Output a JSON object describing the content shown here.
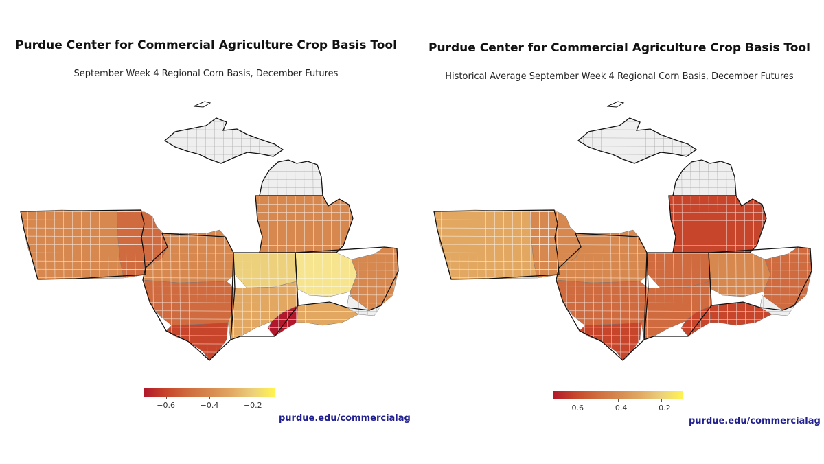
{
  "colors": {
    "very_dark": "#b2182b",
    "dark": "#c7452a",
    "mid_dark": "#cf6b3e",
    "mid": "#d6884f",
    "light_mid": "#e2a862",
    "light": "#ecd07c",
    "pale": "#f6e58e",
    "no_data": "#efefef"
  },
  "panels": [
    {
      "title": "Purdue Center for Commercial Agriculture Crop Basis Tool",
      "subtitle": "September Week 4 Regional Corn Basis, December Futures",
      "credit": "purdue.edu/commercialag",
      "legend": {
        "ticks": [
          "−0.6",
          "−0.4",
          "−0.2"
        ],
        "tick_values": [
          -0.6,
          -0.4,
          -0.2
        ],
        "min": -0.7,
        "max": -0.1
      },
      "regions": {
        "iowa": "mid",
        "iowa_east": "mid_dark",
        "illinois_n": "mid",
        "illinois_s": "mid_dark",
        "illinois_tip": "dark",
        "indiana_n": "light",
        "indiana_s": "light_mid",
        "indiana_sw": "very_dark",
        "ohio_w": "pale",
        "ohio_e": "mid",
        "ohio_se": "no_data",
        "kentucky": "light_mid",
        "lower_mi": "mid",
        "northern_lower_mi": "no_data",
        "upper_mi": "no_data"
      }
    },
    {
      "title": "Purdue Center for Commercial Agriculture Crop Basis Tool",
      "subtitle": "Historical Average September Week 4 Regional Corn Basis, December Futures",
      "credit": "purdue.edu/commercialag",
      "legend": {
        "ticks": [
          "−0.6",
          "−0.4",
          "−0.2"
        ],
        "tick_values": [
          -0.6,
          -0.4,
          -0.2
        ],
        "min": -0.7,
        "max": -0.1
      },
      "regions": {
        "iowa": "light_mid",
        "iowa_east": "mid",
        "illinois_n": "mid",
        "illinois_s": "mid_dark",
        "illinois_tip": "dark",
        "indiana_n": "mid_dark",
        "indiana_s": "mid_dark",
        "indiana_sw": "dark",
        "ohio_w": "mid",
        "ohio_e": "mid_dark",
        "ohio_se": "no_data",
        "kentucky": "dark",
        "lower_mi": "dark",
        "northern_lower_mi": "no_data",
        "upper_mi": "no_data"
      }
    }
  ]
}
